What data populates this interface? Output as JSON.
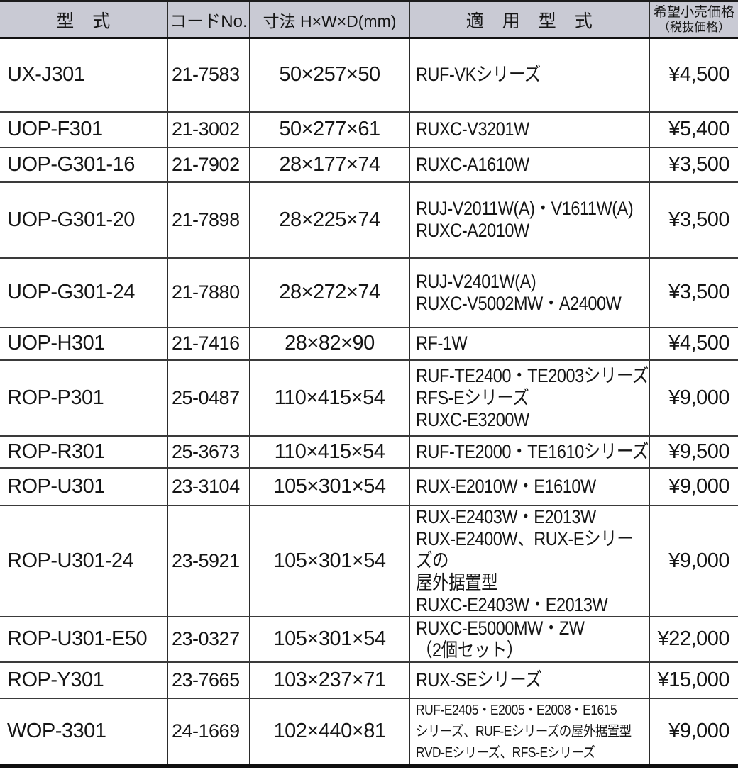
{
  "table": {
    "headers": {
      "model": "型　式",
      "code": "コードNo.",
      "dimensions": "寸法 H×W×D(mm)",
      "applicable": "適　用　型　式",
      "price_main": "希望小売価格",
      "price_sub": "（税抜価格）"
    },
    "rows": [
      {
        "model": "UX-J301",
        "code": "21-7583",
        "dimensions": "50×257×50",
        "applicable": "RUF-VKシリーズ",
        "price": "¥4,500"
      },
      {
        "model": "UOP-F301",
        "code": "21-3002",
        "dimensions": "50×277×61",
        "applicable": "RUXC-V3201W",
        "price": "¥5,400"
      },
      {
        "model": "UOP-G301-16",
        "code": "21-7902",
        "dimensions": "28×177×74",
        "applicable": "RUXC-A1610W",
        "price": "¥3,500"
      },
      {
        "model": "UOP-G301-20",
        "code": "21-7898",
        "dimensions": "28×225×74",
        "applicable": "RUJ-V2011W(A)・V1611W(A)\nRUXC-A2010W",
        "price": "¥3,500"
      },
      {
        "model": "UOP-G301-24",
        "code": "21-7880",
        "dimensions": "28×272×74",
        "applicable": "RUJ-V2401W(A)\nRUXC-V5002MW・A2400W",
        "price": "¥3,500"
      },
      {
        "model": "UOP-H301",
        "code": "21-7416",
        "dimensions": "28×82×90",
        "applicable": "RF-1W",
        "price": "¥4,500"
      },
      {
        "model": "ROP-P301",
        "code": "25-0487",
        "dimensions": "110×415×54",
        "applicable": "RUF-TE2400・TE2003シリーズ\nRFS-Eシリーズ\nRUXC-E3200W",
        "price": "¥9,000"
      },
      {
        "model": "ROP-R301",
        "code": "25-3673",
        "dimensions": "110×415×54",
        "applicable": "RUF-TE2000・TE1610シリーズ",
        "price": "¥9,500"
      },
      {
        "model": "ROP-U301",
        "code": "23-3104",
        "dimensions": "105×301×54",
        "applicable": "RUX-E2010W・E1610W",
        "price": "¥9,000"
      },
      {
        "model": "ROP-U301-24",
        "code": "23-5921",
        "dimensions": "105×301×54",
        "applicable": "RUX-E2403W・E2013W\nRUX-E2400W、RUX-Eシリーズの\n屋外据置型\nRUXC-E2403W・E2013W",
        "price": "¥9,000"
      },
      {
        "model": "ROP-U301-E50",
        "code": "23-0327",
        "dimensions": "105×301×54",
        "applicable": "RUXC-E5000MW・ZW\n（2個セット）",
        "price": "¥22,000"
      },
      {
        "model": "ROP-Y301",
        "code": "23-7665",
        "dimensions": "103×237×71",
        "applicable": "RUX-SEシリーズ",
        "price": "¥15,000"
      },
      {
        "model": "WOP-3301",
        "code": "24-1669",
        "dimensions": "102×440×81",
        "applicable": "RUF-E2405・E2005・E2008・E1615\nシリーズ、RUF-Eシリーズの屋外据置型\nRVD-Eシリーズ、RFS-Eシリーズ",
        "price": "¥9,000"
      }
    ]
  },
  "colors": {
    "header_bg": "#c9cad4",
    "border_dark": "#1c1c1c",
    "border_grid": "#3a3a3a",
    "text": "#151515"
  }
}
